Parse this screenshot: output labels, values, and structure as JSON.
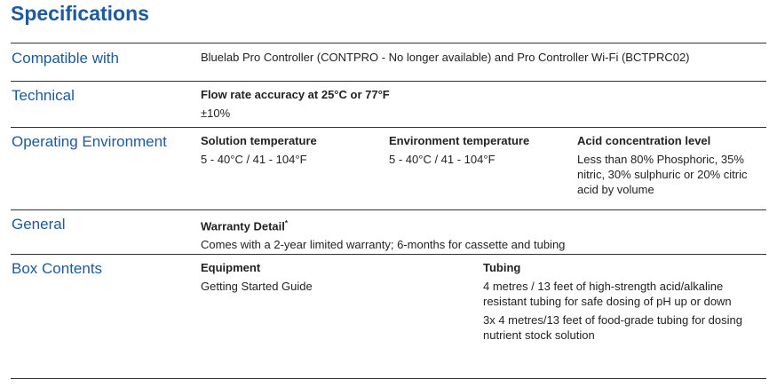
{
  "title": "Specifications",
  "rows": [
    {
      "label": "Compatible with",
      "value": "Bluelab Pro Controller (CONTPRO - No longer available) and Pro Controller Wi-Fi (BCTPRC02)"
    },
    {
      "label": "Technical",
      "items": [
        {
          "heading": "Flow rate accuracy at 25°C or 77°F",
          "value": "±10%"
        }
      ]
    },
    {
      "label": "Operating Environment",
      "items": [
        {
          "heading": "Solution temperature",
          "value": "5 - 40°C / 41 - 104°F"
        },
        {
          "heading": "Environment temperature",
          "value": "5 - 40°C / 41 - 104°F"
        },
        {
          "heading": "Acid concentration level",
          "value": "Less than 80% Phosphoric, 35% nitric, 30% sulphuric or 20% citric acid by volume"
        }
      ]
    },
    {
      "label": "General",
      "items": [
        {
          "heading": "Warranty Detail",
          "sup": "*",
          "value": "Comes with a 2-year limited warranty; 6-months for cassette and tubing"
        }
      ]
    },
    {
      "label": "Box Contents",
      "items": [
        {
          "heading": "Equipment",
          "value": "Getting Started Guide"
        },
        {
          "heading": "Tubing",
          "value": "4 metres / 13 feet of high-strength acid/alkaline resistant tubing for safe dosing of pH up or down",
          "value2": "3x 4 metres/13 feet of food-grade tubing for dosing nutrient stock solution"
        }
      ]
    }
  ]
}
